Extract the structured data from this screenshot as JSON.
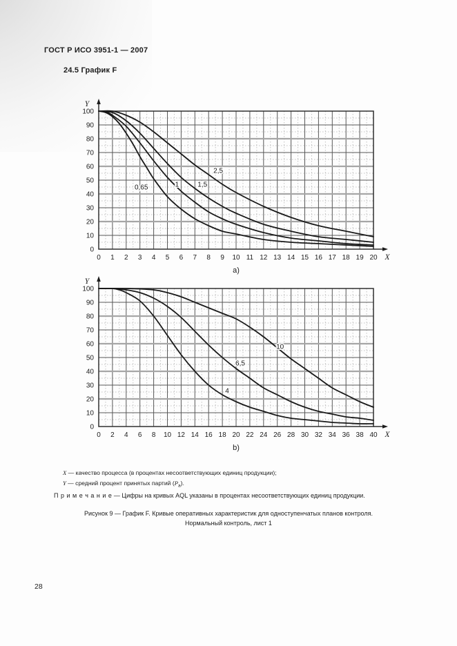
{
  "page": {
    "header": "ГОСТ Р ИСО 3951-1 — 2007",
    "section_heading": "24.5 График F",
    "footnotes": {
      "x_symbol": "X",
      "x_text": " — качество процесса (в процентах несоответствующих единиц продукции);",
      "y_symbol": "Y",
      "y_text_before": " — средний процент принятых партий (",
      "y_var": "P",
      "y_sub": "a",
      "y_text_after": ")."
    },
    "note": {
      "label": "П р и м е ч а н и е",
      "text": "— Цифры на кривых AQL указаны в процентах несоответствующих единиц продукции."
    },
    "caption_line1": "Рисунок 9 — График F. Кривые оперативных характеристик для одноступенчатых планов контроля.",
    "caption_line2": "Нормальный контроль, лист 1",
    "page_number": "28"
  },
  "chart_data": [
    {
      "type": "line",
      "id": "a",
      "sublabel": "a)",
      "xlabel": "X",
      "ylabel": "Y",
      "xlim": [
        0,
        20
      ],
      "ylim": [
        0,
        100
      ],
      "grid": true,
      "x_ticks": [
        0,
        1,
        2,
        3,
        4,
        5,
        6,
        7,
        8,
        9,
        10,
        11,
        12,
        13,
        14,
        15,
        16,
        17,
        18,
        19,
        20
      ],
      "y_ticks": [
        0,
        10,
        20,
        30,
        40,
        50,
        60,
        70,
        80,
        90,
        100
      ],
      "series": [
        {
          "name": "0,65",
          "label_x": 3.1,
          "label_y": 45,
          "points": [
            [
              0,
              100
            ],
            [
              0.5,
              99
            ],
            [
              1,
              96
            ],
            [
              1.5,
              91
            ],
            [
              2,
              84
            ],
            [
              2.5,
              76
            ],
            [
              3,
              67
            ],
            [
              3.5,
              59
            ],
            [
              4,
              51
            ],
            [
              5,
              38
            ],
            [
              6,
              29
            ],
            [
              7,
              22
            ],
            [
              8,
              17
            ],
            [
              9,
              13
            ],
            [
              10,
              11
            ],
            [
              12,
              7
            ],
            [
              14,
              5
            ],
            [
              16,
              4
            ],
            [
              18,
              3
            ],
            [
              20,
              2
            ]
          ]
        },
        {
          "name": "1",
          "label_x": 5.7,
          "label_y": 47,
          "points": [
            [
              0,
              100
            ],
            [
              0.5,
              99.5
            ],
            [
              1,
              97
            ],
            [
              2,
              89
            ],
            [
              3,
              77
            ],
            [
              4,
              64
            ],
            [
              5,
              52
            ],
            [
              6,
              42
            ],
            [
              7,
              34
            ],
            [
              8,
              27
            ],
            [
              9,
              22
            ],
            [
              10,
              18
            ],
            [
              12,
              12
            ],
            [
              14,
              8
            ],
            [
              16,
              6
            ],
            [
              18,
              4
            ],
            [
              20,
              3
            ]
          ]
        },
        {
          "name": "1,5",
          "label_x": 7.55,
          "label_y": 47,
          "points": [
            [
              0,
              100
            ],
            [
              1,
              99
            ],
            [
              2,
              93
            ],
            [
              3,
              84
            ],
            [
              4,
              73
            ],
            [
              5,
              62
            ],
            [
              6,
              52
            ],
            [
              7,
              44
            ],
            [
              8,
              37
            ],
            [
              9,
              31
            ],
            [
              10,
              26
            ],
            [
              12,
              18
            ],
            [
              14,
              13
            ],
            [
              16,
              9
            ],
            [
              18,
              7
            ],
            [
              20,
              5
            ]
          ]
        },
        {
          "name": "2,5",
          "label_x": 8.7,
          "label_y": 57,
          "points": [
            [
              0,
              100
            ],
            [
              1,
              100
            ],
            [
              2,
              97
            ],
            [
              3,
              92
            ],
            [
              4,
              85
            ],
            [
              5,
              77
            ],
            [
              6,
              69
            ],
            [
              7,
              61
            ],
            [
              8,
              54
            ],
            [
              9,
              47
            ],
            [
              10,
              41
            ],
            [
              12,
              31
            ],
            [
              14,
              23
            ],
            [
              16,
              17
            ],
            [
              18,
              13
            ],
            [
              20,
              9
            ]
          ]
        }
      ]
    },
    {
      "type": "line",
      "id": "b",
      "sublabel": "b)",
      "xlabel": "X",
      "ylabel": "Y",
      "xlim": [
        0,
        40
      ],
      "ylim": [
        0,
        100
      ],
      "grid": true,
      "x_ticks": [
        0,
        2,
        4,
        6,
        8,
        10,
        12,
        14,
        16,
        18,
        20,
        22,
        24,
        26,
        28,
        30,
        32,
        34,
        36,
        38,
        40
      ],
      "y_ticks": [
        0,
        10,
        20,
        30,
        40,
        50,
        60,
        70,
        80,
        90,
        100
      ],
      "series": [
        {
          "name": "4",
          "label_x": 18.7,
          "label_y": 26,
          "points": [
            [
              0,
              100
            ],
            [
              2,
              100
            ],
            [
              3,
              99
            ],
            [
              4,
              97
            ],
            [
              6,
              91
            ],
            [
              8,
              80
            ],
            [
              10,
              66
            ],
            [
              12,
              52
            ],
            [
              14,
              40
            ],
            [
              16,
              30
            ],
            [
              18,
              23
            ],
            [
              20,
              18
            ],
            [
              22,
              14
            ],
            [
              24,
              11
            ],
            [
              26,
              8
            ],
            [
              28,
              6
            ],
            [
              30,
              5
            ],
            [
              32,
              4
            ],
            [
              34,
              3
            ],
            [
              36,
              2.5
            ],
            [
              38,
              2
            ],
            [
              40,
              2
            ]
          ]
        },
        {
          "name": "6,5",
          "label_x": 20.6,
          "label_y": 46,
          "points": [
            [
              0,
              100
            ],
            [
              2,
              100
            ],
            [
              4,
              99
            ],
            [
              6,
              97
            ],
            [
              8,
              93
            ],
            [
              10,
              87
            ],
            [
              12,
              79
            ],
            [
              14,
              69
            ],
            [
              16,
              59
            ],
            [
              18,
              50
            ],
            [
              20,
              42
            ],
            [
              22,
              35
            ],
            [
              24,
              28
            ],
            [
              26,
              23
            ],
            [
              28,
              18
            ],
            [
              30,
              14
            ],
            [
              32,
              11
            ],
            [
              34,
              9
            ],
            [
              36,
              7
            ],
            [
              38,
              6
            ],
            [
              40,
              4.5
            ]
          ]
        },
        {
          "name": "10",
          "label_x": 26.4,
          "label_y": 58,
          "points": [
            [
              0,
              100
            ],
            [
              4,
              100
            ],
            [
              8,
              99
            ],
            [
              10,
              97
            ],
            [
              12,
              94
            ],
            [
              14,
              90
            ],
            [
              16,
              86
            ],
            [
              18,
              82
            ],
            [
              20,
              78
            ],
            [
              22,
              72
            ],
            [
              24,
              65
            ],
            [
              26,
              57
            ],
            [
              28,
              49
            ],
            [
              30,
              42
            ],
            [
              32,
              35
            ],
            [
              34,
              28
            ],
            [
              36,
              23
            ],
            [
              38,
              18
            ],
            [
              40,
              14
            ]
          ]
        }
      ]
    }
  ]
}
